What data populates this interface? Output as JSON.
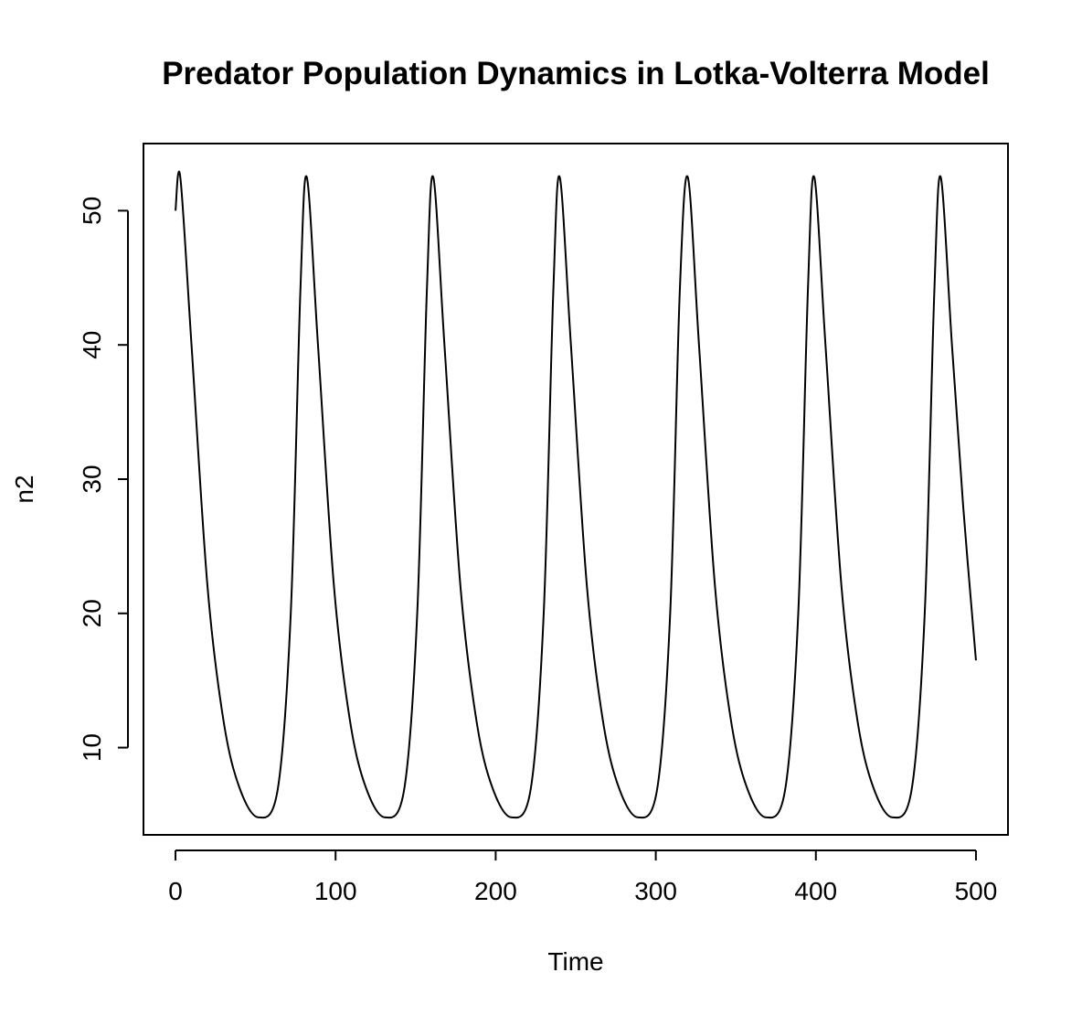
{
  "chart_data": {
    "type": "line",
    "title": "Predator Population Dynamics in Lotka-Volterra Model",
    "xlabel": "Time",
    "ylabel": "n2",
    "xlim": [
      -20,
      520
    ],
    "ylim": [
      3.5,
      55
    ],
    "x_ticks": [
      0,
      100,
      200,
      300,
      400,
      500
    ],
    "y_ticks": [
      10,
      20,
      30,
      40,
      50
    ],
    "grid": false,
    "legend": "none",
    "line_color": "#000000",
    "series": [
      {
        "x": [
          0,
          3,
          10,
          20,
          30,
          40,
          52,
          64,
          72,
          78,
          82,
          89,
          99,
          109,
          119,
          131,
          143,
          151,
          157,
          161,
          168,
          178,
          188,
          198,
          210,
          222,
          230,
          236,
          240,
          247,
          257,
          267,
          277,
          289,
          301,
          309,
          315,
          320,
          327,
          337,
          347,
          357,
          369,
          381,
          389,
          395,
          399,
          406,
          416,
          426,
          436,
          448,
          460,
          468,
          474,
          478,
          485,
          492,
          500
        ],
        "y": [
          50,
          52.5,
          40,
          22,
          12,
          7,
          4.8,
          7,
          20,
          44,
          52.5,
          40,
          22,
          12,
          7,
          4.8,
          7,
          20,
          44,
          52.5,
          40,
          22,
          12,
          7,
          4.8,
          7,
          20,
          44,
          52.5,
          40,
          22,
          12,
          7,
          4.8,
          7,
          20,
          44,
          52.5,
          40,
          22,
          12,
          7,
          4.8,
          7,
          20,
          44,
          52.5,
          40,
          22,
          12,
          7,
          4.8,
          7,
          20,
          44,
          52.5,
          40,
          28,
          16.5
        ]
      }
    ]
  }
}
